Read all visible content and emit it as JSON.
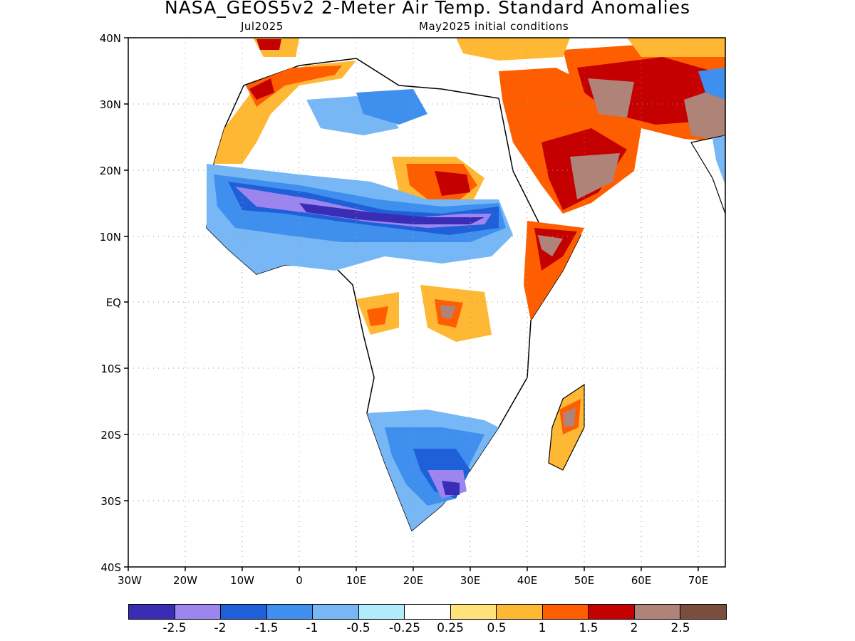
{
  "header": {
    "title": "NASA_GEOS5v2 2-Meter Air Temp. Standard Anomalies",
    "valid_month": "Jul2025",
    "init_conditions": "May2025 initial conditions"
  },
  "map": {
    "lon_ticks": [
      "30W",
      "20W",
      "10W",
      "0",
      "10E",
      "20E",
      "30E",
      "40E",
      "50E",
      "60E",
      "70E"
    ],
    "lat_ticks": [
      "40N",
      "30N",
      "20N",
      "10N",
      "EQ",
      "10S",
      "20S",
      "30S",
      "40S"
    ],
    "lon_range": [
      -30,
      75
    ],
    "lat_range": [
      -40,
      40
    ]
  },
  "legend": {
    "labels": [
      "-2.5",
      "-2",
      "-1.5",
      "-1",
      "-0.5",
      "-0.25",
      "0.25",
      "0.5",
      "1",
      "1.5",
      "2",
      "2.5"
    ],
    "colors": [
      "#3a2db5",
      "#9d85f0",
      "#1f5fd8",
      "#3f8fee",
      "#78b7f5",
      "#b0ecfb",
      "#ffffff",
      "#ffe27a",
      "#ffb833",
      "#ff5e00",
      "#c40000",
      "#b08379",
      "#7a4e3d"
    ]
  }
}
